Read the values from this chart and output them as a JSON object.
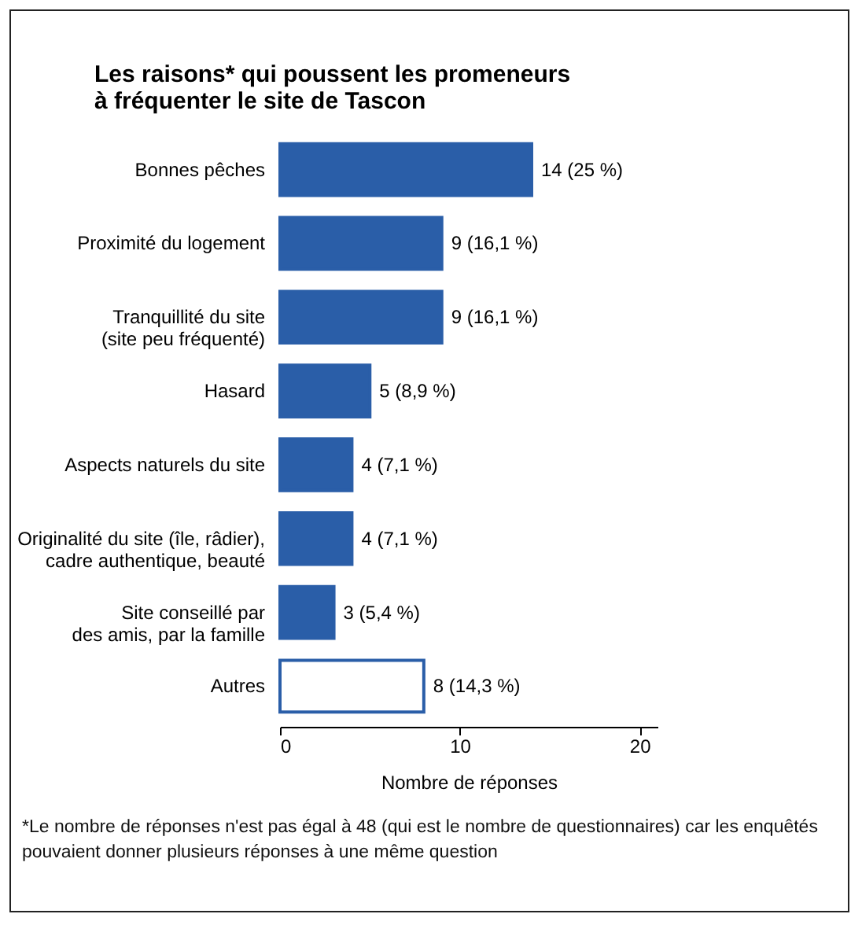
{
  "chart_data": {
    "type": "bar",
    "orientation": "horizontal",
    "title": "Les raisons* qui poussent les promeneurs\nà fréquenter le site de Tascon",
    "xlabel": "Nombre de réponses",
    "categories": [
      "Bonnes pêches",
      "Proximité du logement",
      "Tranquillité du site\n(site peu fréquenté)",
      "Hasard",
      "Aspects naturels du site",
      "Originalité du site (île, râdier),\ncadre authentique, beauté",
      "Site conseillé par\ndes amis, par la famille",
      "Autres"
    ],
    "values": [
      14,
      9,
      9,
      5,
      4,
      4,
      3,
      8
    ],
    "colors": [
      "#2a5ea8",
      "#2a5ea8",
      "#2a5ea8",
      "#2a5ea8",
      "#2a5ea8",
      "#2a5ea8",
      "#2a5ea8",
      "#ffffff"
    ],
    "value_labels": [
      "14 (25 %)",
      "9 (16,1 %)",
      "9 (16,1 %)",
      "5 (8,9 %)",
      "4 (7,1 %)",
      "4 (7,1 %)",
      "3 (5,4 %)",
      "8 (14,3 %)"
    ],
    "xlim": [
      0,
      21
    ],
    "xticks": [
      0,
      10,
      20
    ],
    "grid": false,
    "annotations": [
      "*Le nombre de réponses n'est pas égal à 48 (qui est le nombre de questionnaires) car les enquêtés pouvaient donner plusieurs réponses à une même question"
    ]
  }
}
